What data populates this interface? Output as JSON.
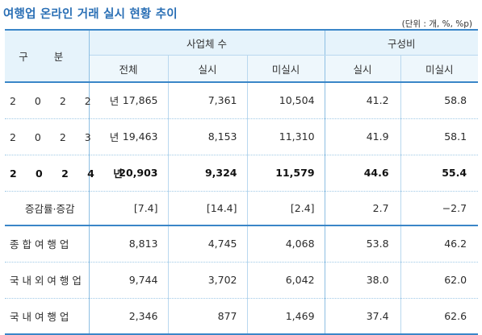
{
  "title": "여행업 온라인 거래 실시 현황 추이",
  "unit_note": "(단위 : 개, %, %p)",
  "header": {
    "category": "구 분",
    "group_business": "사업체 수",
    "group_ratio": "구성비",
    "col_total": "전체",
    "col_done": "실시",
    "col_not_done": "미실시",
    "col_ratio_done": "실시",
    "col_ratio_not_done": "미실시"
  },
  "rows": [
    {
      "label": "2 0 2 2 년",
      "total": "17,865",
      "done": "7,361",
      "not_done": "10,504",
      "ratio_done": "41.2",
      "ratio_not_done": "58.8"
    },
    {
      "label": "2 0 2 3 년",
      "total": "19,463",
      "done": "8,153",
      "not_done": "11,310",
      "ratio_done": "41.9",
      "ratio_not_done": "58.1"
    },
    {
      "label": "2 0 2 4 년",
      "total": "20,903",
      "done": "9,324",
      "not_done": "11,579",
      "ratio_done": "44.6",
      "ratio_not_done": "55.4"
    },
    {
      "label": "증감률·증감",
      "total": "[7.4]",
      "done": "[14.4]",
      "not_done": "[2.4]",
      "ratio_done": "2.7",
      "ratio_not_done": "−2.7"
    },
    {
      "label": "종 합 여 행 업",
      "total": "8,813",
      "done": "4,745",
      "not_done": "4,068",
      "ratio_done": "53.8",
      "ratio_not_done": "46.2"
    },
    {
      "label": "국 내 외 여 행 업",
      "total": "9,744",
      "done": "3,702",
      "not_done": "6,042",
      "ratio_done": "38.0",
      "ratio_not_done": "62.0"
    },
    {
      "label": "국 내 여 행 업",
      "total": "2,346",
      "done": "877",
      "not_done": "1,469",
      "ratio_done": "37.4",
      "ratio_not_done": "62.6"
    }
  ]
}
